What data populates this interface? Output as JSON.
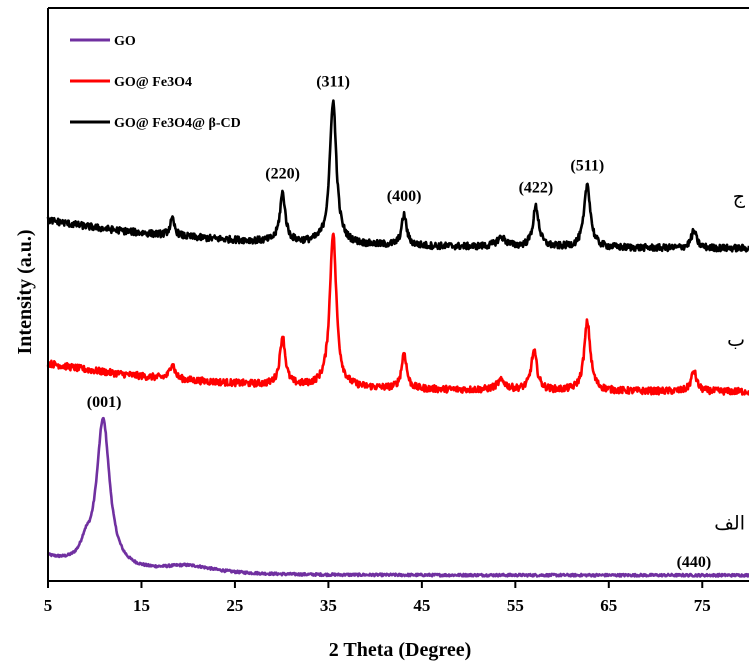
{
  "chart_data": {
    "type": "line",
    "xlabel": "2 Theta (Degree)",
    "ylabel": "Intensity (a.u.)",
    "xlim": [
      5,
      80
    ],
    "ylim": [
      0,
      100
    ],
    "x_ticks": [
      5,
      15,
      25,
      35,
      45,
      55,
      65,
      75
    ],
    "grid": false,
    "legend": {
      "placement": "top-left",
      "entries": [
        "GO",
        "GO@ Fe3O4",
        "GO@ Fe3O4@ β-CD"
      ]
    },
    "colors": {
      "GO": "#7030A0",
      "GO@ Fe3O4": "#FF0000",
      "GO@ Fe3O4@ β-CD": "#000000"
    },
    "series": [
      {
        "name": "GO",
        "curve_label": "الف",
        "baseline": 1.0,
        "start_level": 3.0,
        "decay": 0.2,
        "noise": 0.22,
        "peaks": [
          {
            "x": 10.9,
            "height": 26.0,
            "width": 0.85
          },
          {
            "x": 9.0,
            "height": 2.5,
            "width": 0.6
          },
          {
            "x": 20.0,
            "height": 1.4,
            "width": 3.5
          }
        ]
      },
      {
        "name": "GO@ Fe3O4",
        "curve_label": "ب",
        "baseline": 33.0,
        "start_level": 5.0,
        "decay": 0.06,
        "noise": 0.6,
        "peaks": [
          {
            "x": 18.3,
            "height": 2.8,
            "width": 0.3
          },
          {
            "x": 30.1,
            "height": 8.5,
            "width": 0.35
          },
          {
            "x": 35.5,
            "height": 27.0,
            "width": 0.42
          },
          {
            "x": 43.1,
            "height": 6.3,
            "width": 0.32
          },
          {
            "x": 53.5,
            "height": 1.6,
            "width": 0.6
          },
          {
            "x": 57.0,
            "height": 6.8,
            "width": 0.38
          },
          {
            "x": 62.7,
            "height": 12.0,
            "width": 0.4
          },
          {
            "x": 74.1,
            "height": 3.5,
            "width": 0.35
          }
        ]
      },
      {
        "name": "GO@ Fe3O4@ β-CD",
        "curve_label": "ج",
        "baseline": 58.0,
        "start_level": 5.0,
        "decay": 0.06,
        "noise": 0.6,
        "peaks": [
          {
            "x": 18.3,
            "height": 2.8,
            "width": 0.3
          },
          {
            "x": 30.1,
            "height": 8.5,
            "width": 0.35
          },
          {
            "x": 35.5,
            "height": 25.0,
            "width": 0.42
          },
          {
            "x": 43.1,
            "height": 5.3,
            "width": 0.32
          },
          {
            "x": 53.5,
            "height": 1.6,
            "width": 0.6
          },
          {
            "x": 57.2,
            "height": 7.0,
            "width": 0.38
          },
          {
            "x": 62.7,
            "height": 11.0,
            "width": 0.4
          },
          {
            "x": 74.1,
            "height": 3.0,
            "width": 0.35
          }
        ]
      }
    ],
    "annotations": [
      {
        "text": "(001)",
        "x": 11.0
      },
      {
        "text": "(220)",
        "x": 30.1
      },
      {
        "text": "(311)",
        "x": 35.5
      },
      {
        "text": "(400)",
        "x": 43.1
      },
      {
        "text": "(422)",
        "x": 57.2
      },
      {
        "text": "(511)",
        "x": 62.7
      },
      {
        "text": "(440)",
        "x": 74.1
      }
    ]
  }
}
